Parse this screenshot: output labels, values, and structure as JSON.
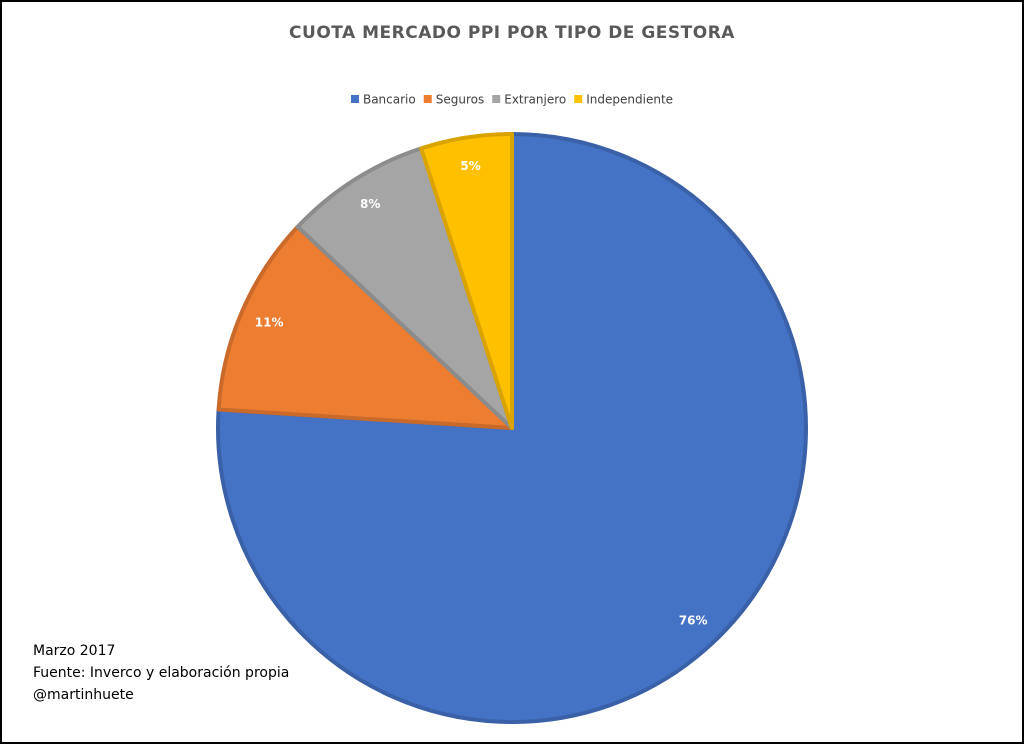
{
  "chart_data": {
    "type": "pie",
    "title": "CUOTA MERCADO PPI POR TIPO DE GESTORA",
    "categories": [
      "Bancario",
      "Seguros",
      "Extranjero",
      "Independiente"
    ],
    "values": [
      76,
      11,
      8,
      5
    ],
    "value_labels": [
      "76%",
      "11%",
      "8%",
      "5%"
    ],
    "colors": [
      "#4472c4",
      "#ed7d31",
      "#a5a5a5",
      "#ffc000"
    ],
    "legend": "top",
    "annotations": [
      "Marzo 2017",
      "Fuente: Inverco y elaboración propia",
      "@martinhuete"
    ]
  }
}
